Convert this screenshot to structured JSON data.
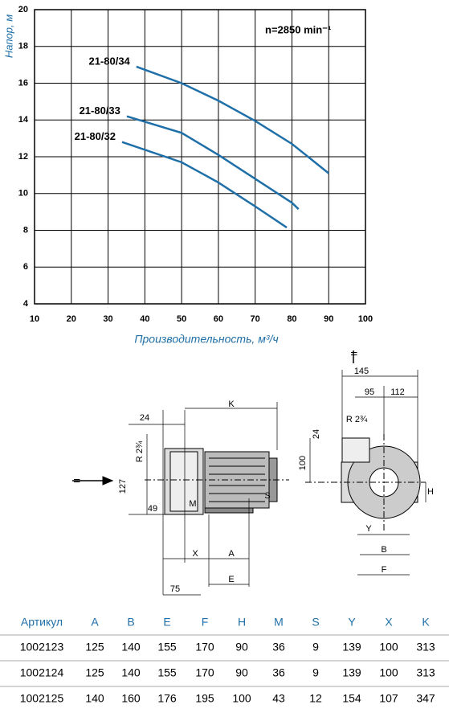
{
  "chart_data": {
    "type": "line",
    "ylabel": "Напор, м",
    "xlabel": "Производительность, м³/ч",
    "annotation": "n=2850 min⁻¹",
    "xlim": [
      10,
      100
    ],
    "xticks": [
      10,
      20,
      30,
      40,
      50,
      60,
      70,
      80,
      90,
      100
    ],
    "ylim": [
      4,
      20
    ],
    "yticks": [
      4,
      6,
      8,
      10,
      12,
      14,
      16,
      18,
      20
    ],
    "grid": true,
    "series": [
      {
        "name": "21-80/34",
        "color": "#1f6fa8",
        "x": [
          37.7,
          50,
          60,
          70,
          80,
          90
        ],
        "values": [
          16.9,
          16.0,
          15.05,
          13.95,
          12.7,
          11.1
        ]
      },
      {
        "name": "21-80/33",
        "color": "#1f6fa8",
        "x": [
          35.1,
          50,
          60,
          70,
          80,
          81.8
        ],
        "values": [
          14.2,
          13.3,
          12.1,
          10.8,
          9.5,
          9.15
        ]
      },
      {
        "name": "21-80/32",
        "color": "#1f6fa8",
        "x": [
          33.8,
          50,
          60,
          70,
          78.6
        ],
        "values": [
          12.8,
          11.7,
          10.6,
          9.3,
          8.15
        ]
      }
    ]
  },
  "drawing": {
    "labels": [
      "24",
      "K",
      "R 2¾",
      "127",
      "49",
      "M",
      "S",
      "X",
      "A",
      "75",
      "E",
      "II",
      "145",
      "95",
      "112",
      "R 2¾",
      "24",
      "100",
      "H",
      "Y",
      "B",
      "F",
      "II"
    ]
  },
  "table": {
    "header": [
      "Артикул",
      "A",
      "B",
      "E",
      "F",
      "H",
      "M",
      "S",
      "Y",
      "X",
      "K"
    ],
    "rows": [
      [
        "1002123",
        125,
        140,
        155,
        170,
        90,
        36,
        9,
        139,
        100,
        313
      ],
      [
        "1002124",
        125,
        140,
        155,
        170,
        90,
        36,
        9,
        139,
        100,
        313
      ],
      [
        "1002125",
        140,
        160,
        176,
        195,
        100,
        43,
        12,
        154,
        107,
        347
      ]
    ]
  }
}
